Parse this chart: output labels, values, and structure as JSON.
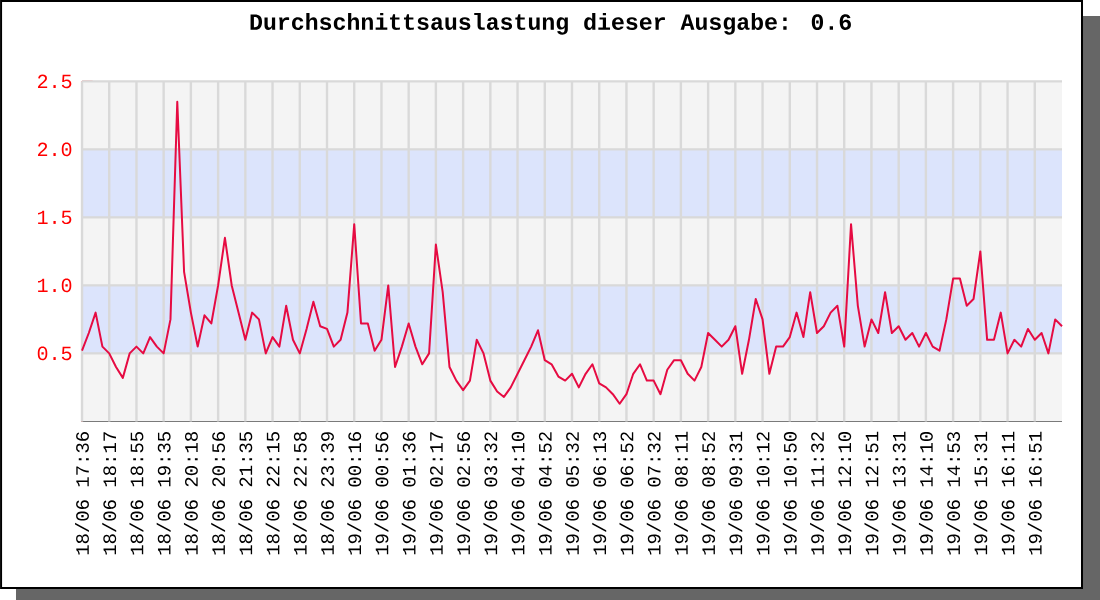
{
  "chart_data": {
    "type": "line",
    "title": "Durchschnittsauslastung dieser Ausgabe: 0.6",
    "categories": [
      "18/06 17:36",
      null,
      null,
      null,
      "18/06 18:17",
      null,
      null,
      null,
      "18/06 18:55",
      null,
      null,
      null,
      "18/06 19:35",
      null,
      null,
      null,
      "18/06 20:18",
      null,
      null,
      null,
      "18/06 20:56",
      null,
      null,
      null,
      "18/06 21:35",
      null,
      null,
      null,
      "18/06 22:15",
      null,
      null,
      null,
      "18/06 22:58",
      null,
      null,
      null,
      "18/06 23:39",
      null,
      null,
      null,
      "19/06 00:16",
      null,
      null,
      null,
      "19/06 00:56",
      null,
      null,
      null,
      "19/06 01:36",
      null,
      null,
      null,
      "19/06 02:17",
      null,
      null,
      null,
      "19/06 02:56",
      null,
      null,
      null,
      "19/06 03:32",
      null,
      null,
      null,
      "19/06 04:10",
      null,
      null,
      null,
      "19/06 04:52",
      null,
      null,
      null,
      "19/06 05:32",
      null,
      null,
      null,
      "19/06 06:13",
      null,
      null,
      null,
      "19/06 06:52",
      null,
      null,
      null,
      "19/06 07:32",
      null,
      null,
      null,
      "19/06 08:11",
      null,
      null,
      null,
      "19/06 08:52",
      null,
      null,
      null,
      "19/06 09:31",
      null,
      null,
      null,
      "19/06 10:12",
      null,
      null,
      null,
      "19/06 10:50",
      null,
      null,
      null,
      "19/06 11:32",
      null,
      null,
      null,
      "19/06 12:10",
      null,
      null,
      null,
      "19/06 12:51",
      null,
      null,
      null,
      "19/06 13:31",
      null,
      null,
      null,
      "19/06 14:10",
      null,
      null,
      null,
      "19/06 14:53",
      null,
      null,
      null,
      "19/06 15:31",
      null,
      null,
      null,
      "19/06 16:11",
      null,
      null,
      null,
      "19/06 16:51",
      null,
      null,
      null,
      null
    ],
    "series": [
      {
        "color": "#e60b42",
        "values": [
          0.52,
          0.65,
          0.8,
          0.55,
          0.5,
          0.4,
          0.32,
          0.5,
          0.55,
          0.5,
          0.62,
          0.55,
          0.5,
          0.75,
          2.35,
          1.1,
          0.8,
          0.55,
          0.78,
          0.72,
          1.0,
          1.35,
          1.0,
          0.8,
          0.6,
          0.8,
          0.75,
          0.5,
          0.62,
          0.55,
          0.85,
          0.6,
          0.5,
          0.68,
          0.88,
          0.7,
          0.68,
          0.55,
          0.6,
          0.8,
          1.45,
          0.72,
          0.72,
          0.52,
          0.6,
          1.0,
          0.4,
          0.55,
          0.72,
          0.55,
          0.42,
          0.5,
          1.3,
          0.95,
          0.4,
          0.3,
          0.23,
          0.3,
          0.6,
          0.5,
          0.3,
          0.22,
          0.18,
          0.25,
          0.35,
          0.45,
          0.55,
          0.67,
          0.45,
          0.42,
          0.33,
          0.3,
          0.35,
          0.25,
          0.35,
          0.42,
          0.28,
          0.25,
          0.2,
          0.13,
          0.2,
          0.35,
          0.42,
          0.3,
          0.3,
          0.2,
          0.38,
          0.45,
          0.45,
          0.35,
          0.3,
          0.4,
          0.65,
          0.6,
          0.55,
          0.6,
          0.7,
          0.35,
          0.6,
          0.9,
          0.75,
          0.35,
          0.55,
          0.55,
          0.62,
          0.8,
          0.62,
          0.95,
          0.65,
          0.7,
          0.8,
          0.85,
          0.55,
          1.45,
          0.85,
          0.55,
          0.75,
          0.65,
          0.95,
          0.65,
          0.7,
          0.6,
          0.65,
          0.55,
          0.65,
          0.55,
          0.52,
          0.75,
          1.05,
          1.05,
          0.85,
          0.9,
          1.25,
          0.6,
          0.6,
          0.8,
          0.5,
          0.6,
          0.55,
          0.68,
          0.6,
          0.65,
          0.5,
          0.75,
          0.7
        ]
      }
    ],
    "ylim": [
      0,
      2.5
    ],
    "yticks": [
      0.5,
      {
        "value": 1,
        "label": "1.0"
      },
      1.5,
      {
        "value": 2,
        "label": "2.0"
      },
      2.5
    ],
    "bands": [
      {
        "axis": "y",
        "from": 0.5,
        "to": 1.0,
        "color": "#dce4fc"
      },
      {
        "axis": "y",
        "from": 1.5,
        "to": 2.0,
        "color": "#dce4fc"
      }
    ],
    "grid": true
  }
}
